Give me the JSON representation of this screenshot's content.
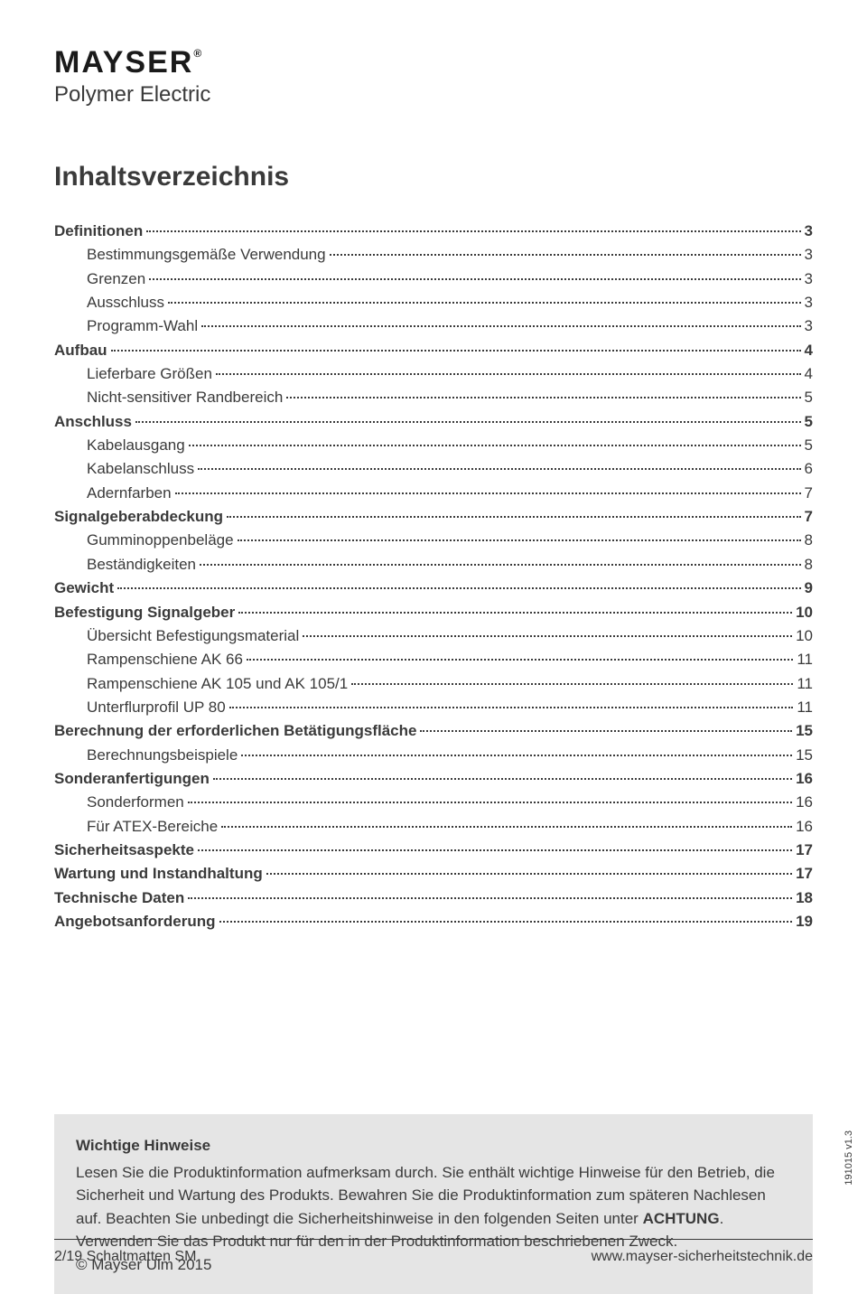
{
  "brand": {
    "name": "MAYSER",
    "registered": "®",
    "subtitle": "Polymer Electric"
  },
  "title": "Inhaltsverzeichnis",
  "toc": [
    {
      "label": "Definitionen",
      "page": "3",
      "bold": true,
      "indent": false
    },
    {
      "label": "Bestimmungsgemäße Verwendung",
      "page": "3",
      "bold": false,
      "indent": true
    },
    {
      "label": "Grenzen",
      "page": "3",
      "bold": false,
      "indent": true
    },
    {
      "label": "Ausschluss",
      "page": "3",
      "bold": false,
      "indent": true
    },
    {
      "label": "Programm-Wahl",
      "page": "3",
      "bold": false,
      "indent": true
    },
    {
      "label": "Aufbau",
      "page": "4",
      "bold": true,
      "indent": false
    },
    {
      "label": "Lieferbare Größen",
      "page": "4",
      "bold": false,
      "indent": true
    },
    {
      "label": "Nicht-sensitiver Randbereich",
      "page": "5",
      "bold": false,
      "indent": true
    },
    {
      "label": "Anschluss",
      "page": "5",
      "bold": true,
      "indent": false
    },
    {
      "label": "Kabelausgang",
      "page": "5",
      "bold": false,
      "indent": true
    },
    {
      "label": "Kabelanschluss",
      "page": "6",
      "bold": false,
      "indent": true
    },
    {
      "label": "Adernfarben",
      "page": "7",
      "bold": false,
      "indent": true
    },
    {
      "label": "Signalgeberabdeckung",
      "page": "7",
      "bold": true,
      "indent": false
    },
    {
      "label": "Gumminoppenbeläge",
      "page": "8",
      "bold": false,
      "indent": true
    },
    {
      "label": "Beständigkeiten",
      "page": "8",
      "bold": false,
      "indent": true
    },
    {
      "label": "Gewicht",
      "page": "9",
      "bold": true,
      "indent": false
    },
    {
      "label": "Befestigung Signalgeber",
      "page": "10",
      "bold": true,
      "indent": false
    },
    {
      "label": "Übersicht Befestigungsmaterial",
      "page": "10",
      "bold": false,
      "indent": true
    },
    {
      "label": "Rampenschiene AK 66",
      "page": "11",
      "bold": false,
      "indent": true
    },
    {
      "label": "Rampenschiene AK 105 und AK 105/1",
      "page": "11",
      "bold": false,
      "indent": true
    },
    {
      "label": "Unterflurprofil UP 80",
      "page": "11",
      "bold": false,
      "indent": true
    },
    {
      "label": "Berechnung der erforderlichen Betätigungsfläche",
      "page": "15",
      "bold": true,
      "indent": false
    },
    {
      "label": "Berechnungsbeispiele",
      "page": "15",
      "bold": false,
      "indent": true
    },
    {
      "label": "Sonderanfertigungen",
      "page": "16",
      "bold": true,
      "indent": false
    },
    {
      "label": "Sonderformen",
      "page": "16",
      "bold": false,
      "indent": true
    },
    {
      "label": "Für ATEX-Bereiche",
      "page": "16",
      "bold": false,
      "indent": true
    },
    {
      "label": "Sicherheitsaspekte",
      "page": "17",
      "bold": true,
      "indent": false
    },
    {
      "label": "Wartung und Instandhaltung",
      "page": "17",
      "bold": true,
      "indent": false
    },
    {
      "label": "Technische Daten",
      "page": "18",
      "bold": true,
      "indent": false
    },
    {
      "label": "Angebotsanforderung",
      "page": "19",
      "bold": true,
      "indent": false
    }
  ],
  "notice": {
    "title": "Wichtige Hinweise",
    "body_1": "Lesen Sie die Produktinformation aufmerksam durch. Sie enthält wichtige Hinweise für den Betrieb, die Sicherheit und Wartung des Produkts. Bewahren Sie die Produktinformation zum späteren Nachlesen auf. Beachten Sie unbedingt die Sicherheitshinweise in den folgenden Seiten unter ",
    "body_strong": "ACHTUNG",
    "body_2": ". Verwenden Sie das Produkt nur für den in der Produktinformation beschriebenen Zweck.",
    "copyright": "© Mayser Ulm 2015"
  },
  "footer": {
    "left": "2/19  Schaltmatten SM",
    "right": "www.mayser-sicherheitstechnik.de"
  },
  "version": "191015 v1.3"
}
